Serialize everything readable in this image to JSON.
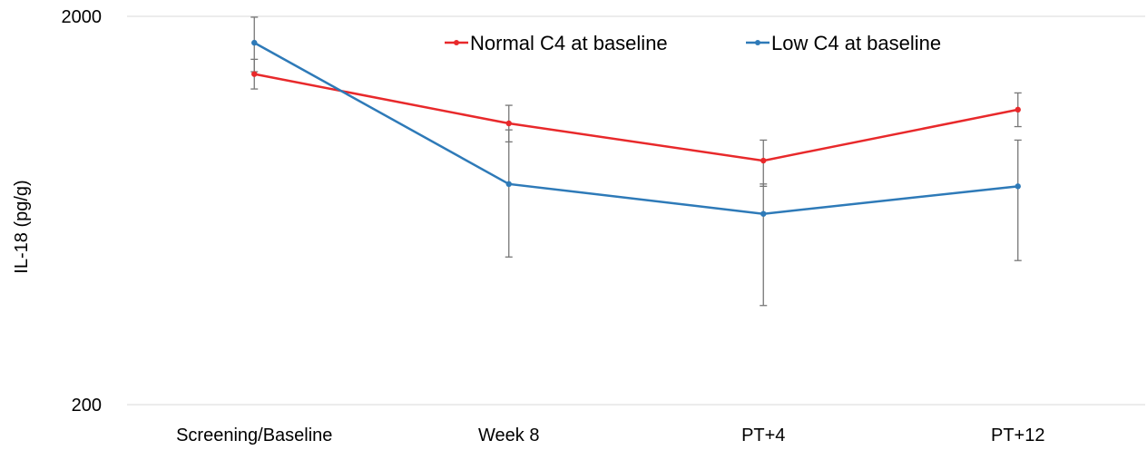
{
  "chart_data": {
    "type": "line",
    "title": "",
    "xlabel": "",
    "ylabel": "IL-18 (pg/g)",
    "yscale": "log",
    "ylim": [
      200,
      2000
    ],
    "yticks": [
      "2000",
      "200"
    ],
    "categories": [
      "Screening/Baseline",
      "Week 8",
      "PT+4",
      "PT+12"
    ],
    "grid": "horizontal",
    "legend_position": "top-center",
    "series": [
      {
        "name": "Normal C4 at baseline",
        "color": "#e8292b",
        "values": [
          1420,
          1060,
          850,
          1150
        ],
        "err_low": [
          1300,
          950,
          730,
          1040
        ],
        "err_high": [
          1550,
          1180,
          960,
          1270
        ]
      },
      {
        "name": "Low C4 at baseline",
        "color": "#2e7ab8",
        "values": [
          1710,
          740,
          620,
          730
        ],
        "err_low": [
          1440,
          480,
          360,
          470
        ],
        "err_high": [
          1990,
          1020,
          740,
          960
        ]
      }
    ]
  }
}
